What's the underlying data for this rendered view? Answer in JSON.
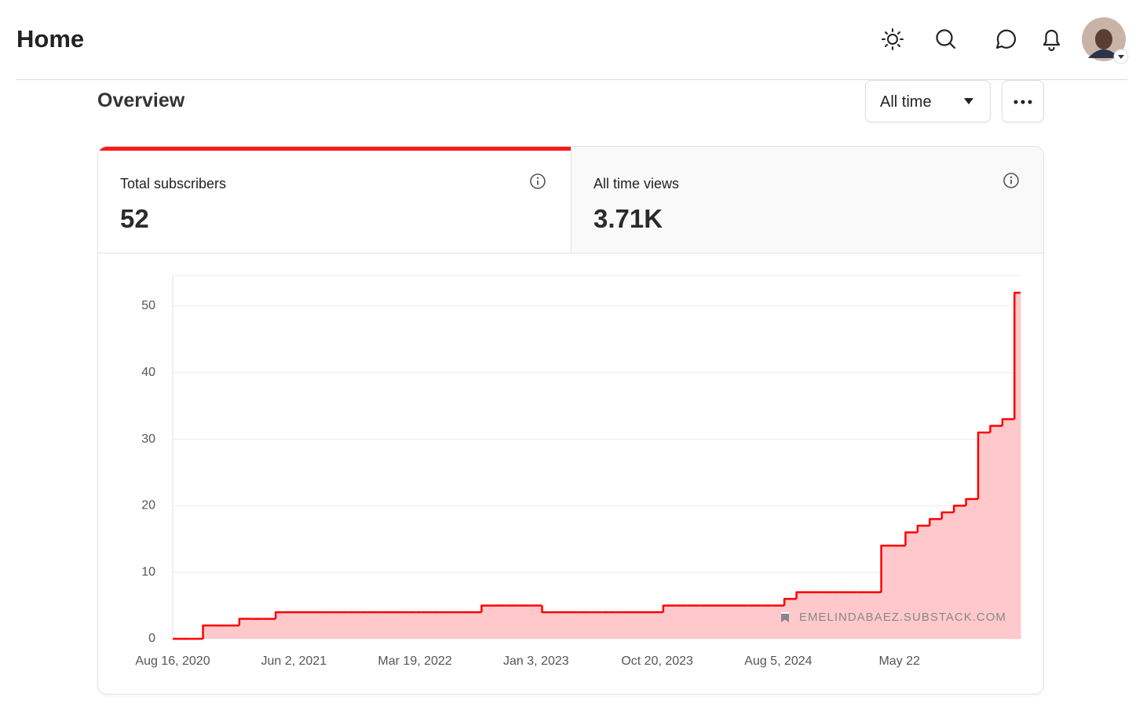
{
  "header": {
    "title": "Home"
  },
  "overview": {
    "title": "Overview",
    "period": "All time"
  },
  "stats": [
    {
      "label": "Total subscribers",
      "value": "52"
    },
    {
      "label": "All time views",
      "value": "3.71K"
    }
  ],
  "chart_data": {
    "type": "line",
    "step": true,
    "grid": true,
    "color": "#ff0000",
    "fill_color": "#ffc9cc",
    "watermark": "EMELINDABAEZ.SUBSTACK.COM",
    "categories": [
      "Aug 16, 2020",
      null,
      null,
      null,
      null,
      null,
      null,
      null,
      null,
      null,
      "Jun 2, 2021",
      null,
      null,
      null,
      null,
      null,
      null,
      null,
      null,
      null,
      "Mar 19, 2022",
      null,
      null,
      null,
      null,
      null,
      null,
      null,
      null,
      null,
      "Jan 3, 2023",
      null,
      null,
      null,
      null,
      null,
      null,
      null,
      null,
      null,
      "Oct 20, 2023",
      null,
      null,
      null,
      null,
      null,
      null,
      null,
      null,
      null,
      "Aug 5, 2024",
      null,
      null,
      null,
      null,
      null,
      null,
      null,
      null,
      null,
      "May 22",
      null,
      null,
      null,
      null,
      null,
      null,
      null,
      null,
      null,
      null
    ],
    "values": [
      0,
      0,
      0,
      2,
      2,
      2,
      3,
      3,
      3,
      4,
      4,
      4,
      4,
      4,
      4,
      4,
      4,
      4,
      4,
      4,
      4,
      4,
      4,
      4,
      4,
      4,
      5,
      5,
      5,
      5,
      5,
      4,
      4,
      4,
      4,
      4,
      4,
      4,
      4,
      4,
      4,
      5,
      5,
      5,
      5,
      5,
      5,
      5,
      5,
      5,
      5,
      6,
      7,
      7,
      7,
      7,
      7,
      7,
      7,
      14,
      14,
      16,
      17,
      18,
      19,
      20,
      21,
      31,
      32,
      33,
      52
    ],
    "ylim": [
      0,
      54.6
    ],
    "yticks": [
      0,
      10,
      20,
      30,
      40,
      50
    ]
  }
}
